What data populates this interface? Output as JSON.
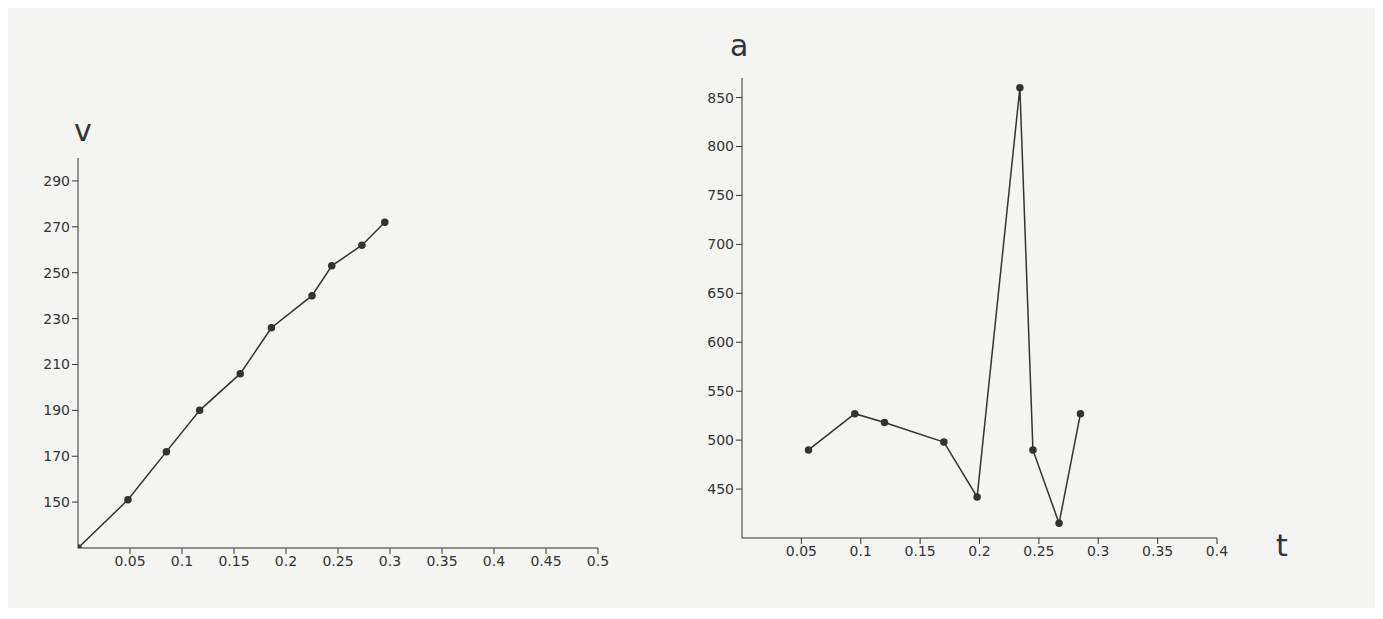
{
  "chart_data": [
    {
      "type": "line",
      "y_label": "v",
      "x": [
        0,
        0.048,
        0.085,
        0.117,
        0.156,
        0.186,
        0.225,
        0.244,
        0.273,
        0.295
      ],
      "values": [
        130,
        151,
        172,
        190,
        206,
        226,
        240,
        253,
        262,
        272
      ],
      "xlim": [
        0,
        0.5
      ],
      "xticks": [
        0.05,
        0.1,
        0.15,
        0.2,
        0.25,
        0.3,
        0.35,
        0.4,
        0.45,
        0.5
      ],
      "ylim": [
        130,
        300
      ],
      "yticks": [
        150,
        170,
        190,
        210,
        230,
        250,
        270,
        290
      ],
      "color": "#333333",
      "marker": "circle"
    },
    {
      "type": "line",
      "y_label": "a",
      "x_label": "t",
      "x": [
        0.056,
        0.095,
        0.12,
        0.17,
        0.198,
        0.234,
        0.245,
        0.267,
        0.285
      ],
      "values": [
        490,
        527,
        518,
        498,
        442,
        860,
        490,
        415,
        527
      ],
      "xlim": [
        0,
        0.4
      ],
      "xticks": [
        0.05,
        0.1,
        0.15,
        0.2,
        0.25,
        0.3,
        0.35,
        0.4
      ],
      "ylim": [
        400,
        870
      ],
      "yticks": [
        450,
        500,
        550,
        600,
        650,
        700,
        750,
        800,
        850
      ],
      "color": "#333333",
      "marker": "circle"
    }
  ]
}
